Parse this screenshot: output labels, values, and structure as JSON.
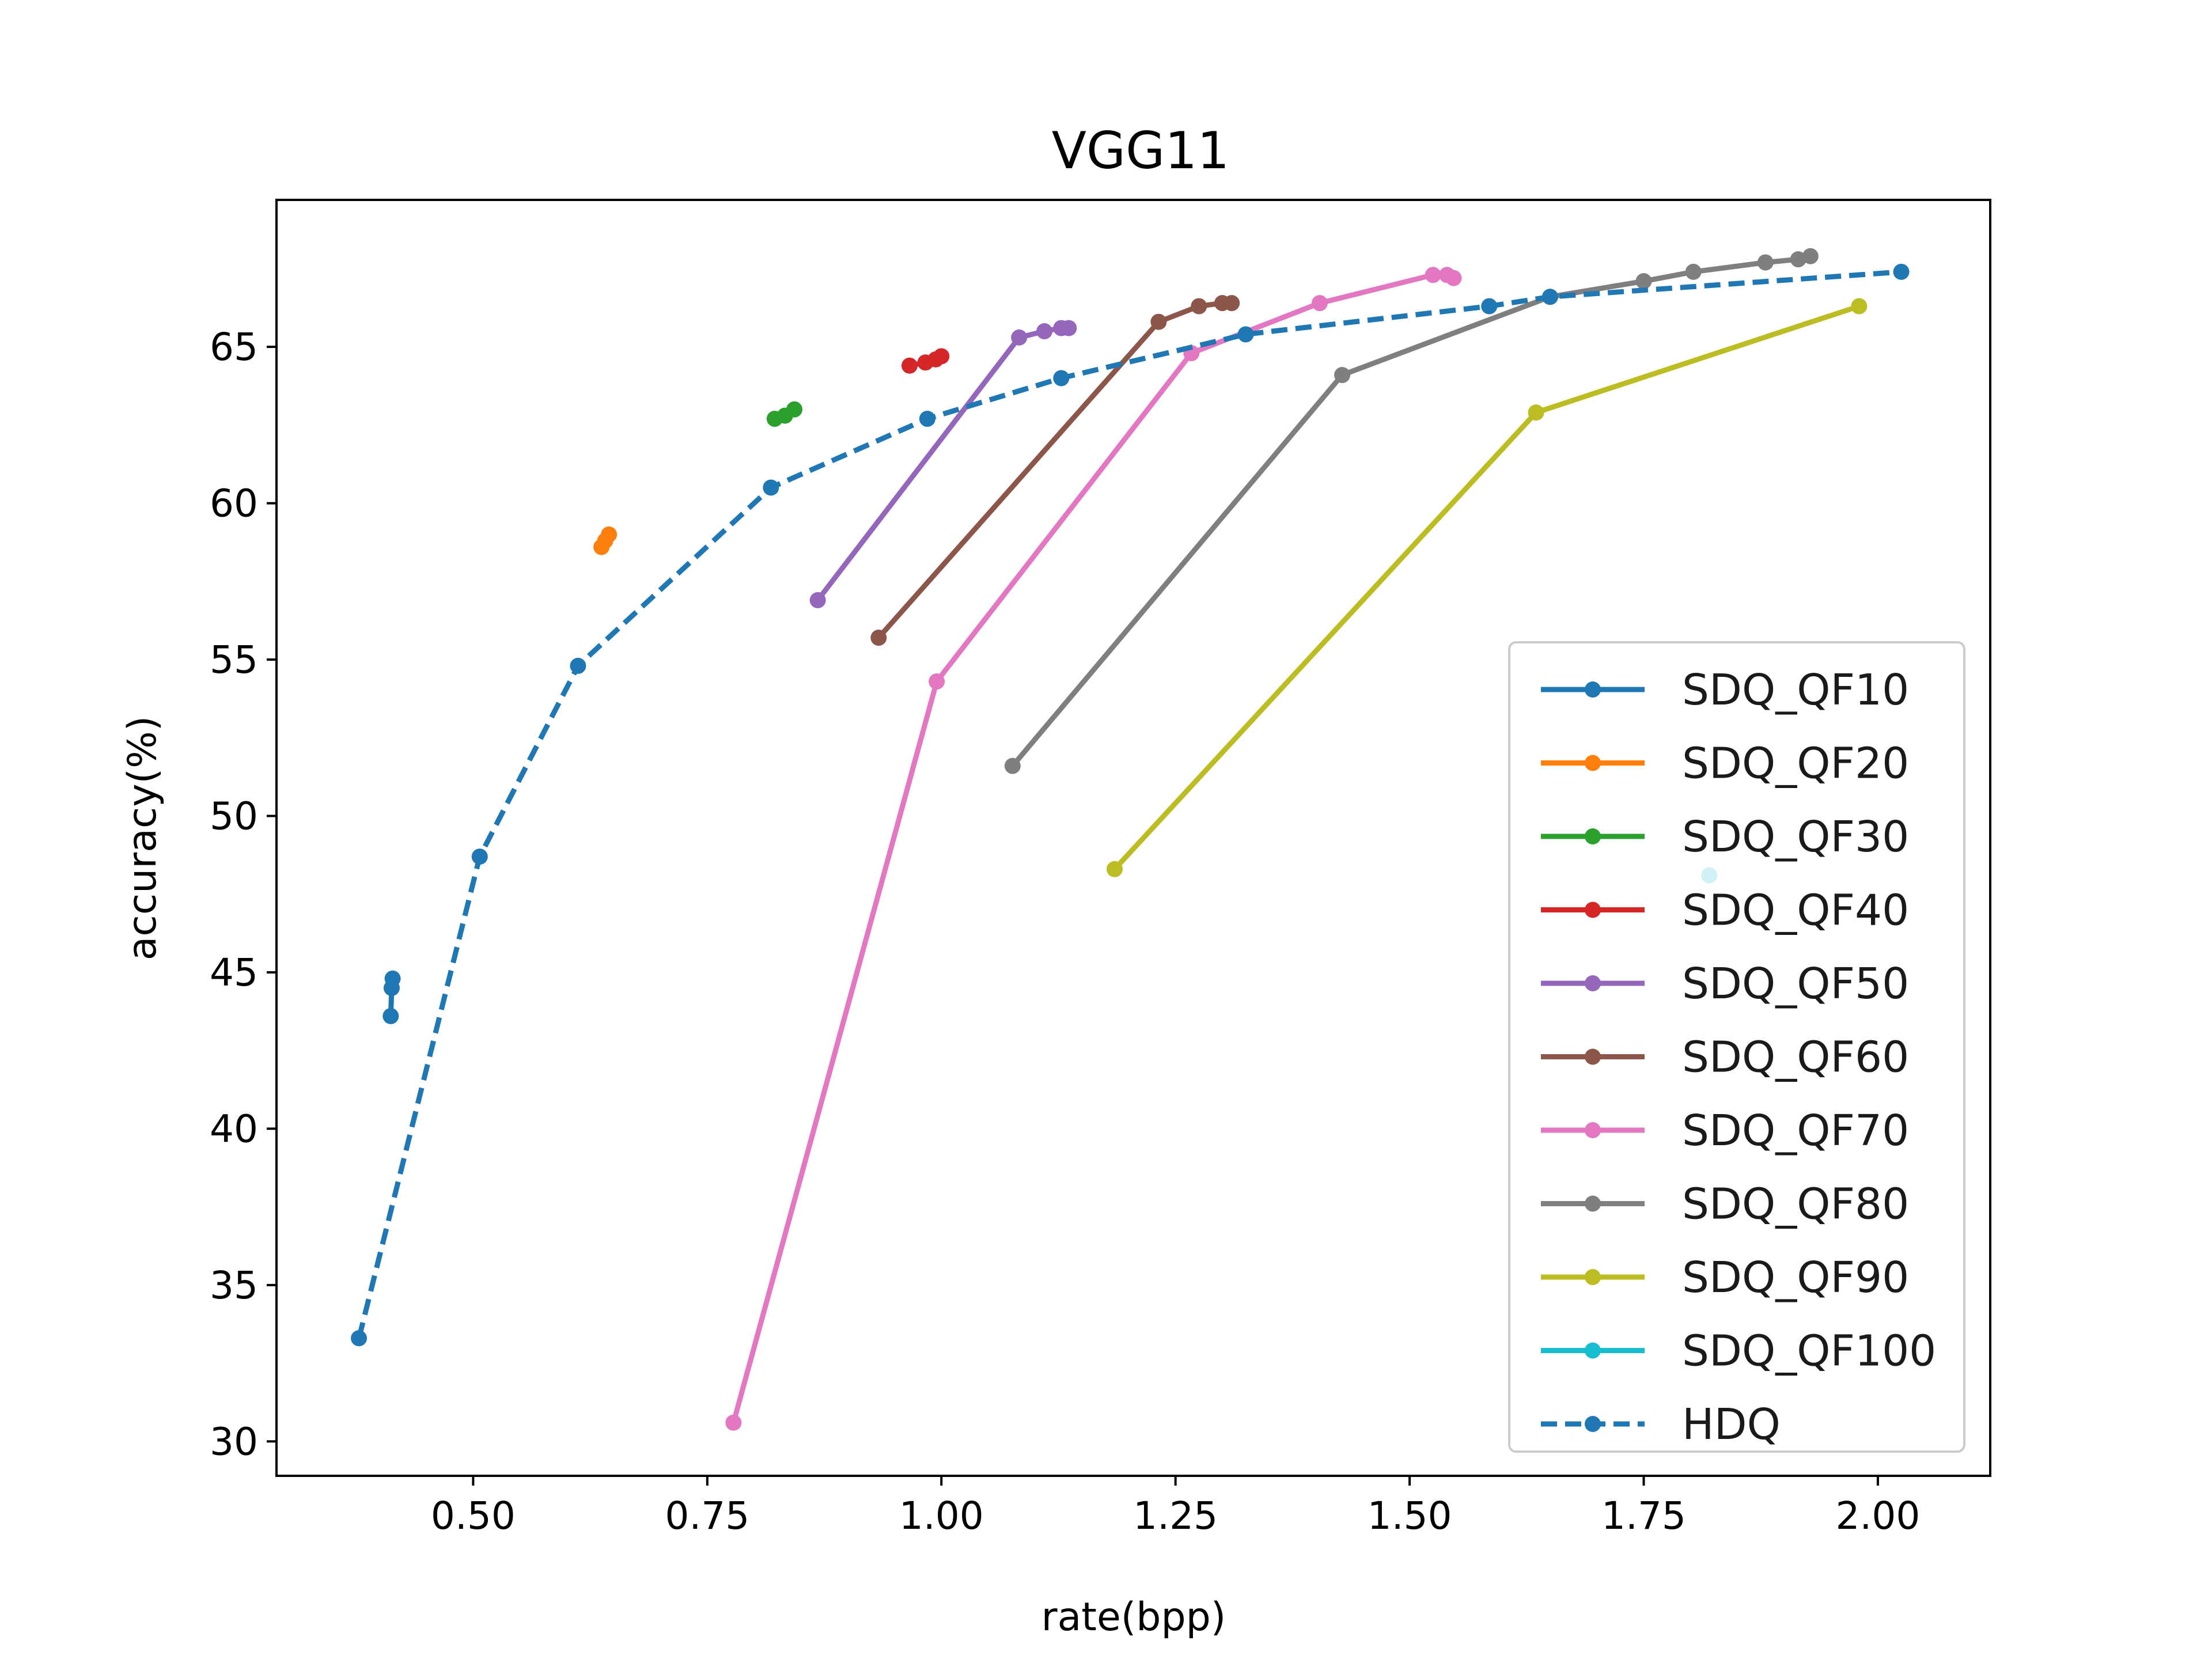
{
  "chart_data": {
    "type": "line",
    "title": "VGG11",
    "xlabel": "rate(bpp)",
    "ylabel": "accuracy(%)",
    "xlim": [
      0.29,
      2.12
    ],
    "ylim": [
      28.9,
      69.7
    ],
    "xticks": [
      0.5,
      0.75,
      1.0,
      1.25,
      1.5,
      1.75,
      2.0
    ],
    "xtick_labels": [
      "0.50",
      "0.75",
      "1.00",
      "1.25",
      "1.50",
      "1.75",
      "2.00"
    ],
    "yticks": [
      30,
      35,
      40,
      45,
      50,
      55,
      60,
      65
    ],
    "ytick_labels": [
      "30",
      "35",
      "40",
      "45",
      "50",
      "55",
      "60",
      "65"
    ],
    "grid": false,
    "legend_position": "lower-right",
    "series": [
      {
        "name": "SDQ_QF10",
        "color": "#1f77b4",
        "style": "solid",
        "points": [
          [
            0.414,
            44.8
          ],
          [
            0.413,
            44.5
          ],
          [
            0.412,
            43.6
          ]
        ]
      },
      {
        "name": "SDQ_QF20",
        "color": "#ff7f0e",
        "style": "solid",
        "points": [
          [
            0.637,
            58.6
          ],
          [
            0.641,
            58.8
          ],
          [
            0.645,
            59.0
          ]
        ]
      },
      {
        "name": "SDQ_QF30",
        "color": "#2ca02c",
        "style": "solid",
        "points": [
          [
            0.822,
            62.7
          ],
          [
            0.833,
            62.8
          ],
          [
            0.843,
            63.0
          ]
        ]
      },
      {
        "name": "SDQ_QF40",
        "color": "#d62728",
        "style": "solid",
        "points": [
          [
            0.966,
            64.4
          ],
          [
            0.983,
            64.5
          ],
          [
            0.994,
            64.6
          ],
          [
            1.0,
            64.7
          ]
        ]
      },
      {
        "name": "SDQ_QF50",
        "color": "#9467bd",
        "style": "solid",
        "points": [
          [
            0.868,
            56.9
          ],
          [
            1.083,
            65.3
          ],
          [
            1.11,
            65.5
          ],
          [
            1.128,
            65.6
          ],
          [
            1.136,
            65.6
          ]
        ]
      },
      {
        "name": "SDQ_QF60",
        "color": "#8c564b",
        "style": "solid",
        "points": [
          [
            0.933,
            55.7
          ],
          [
            1.232,
            65.8
          ],
          [
            1.275,
            66.3
          ],
          [
            1.3,
            66.4
          ],
          [
            1.31,
            66.4
          ]
        ]
      },
      {
        "name": "SDQ_QF70",
        "color": "#e377c2",
        "style": "solid",
        "points": [
          [
            0.778,
            30.6
          ],
          [
            0.995,
            54.3
          ],
          [
            1.267,
            64.8
          ],
          [
            1.404,
            66.4
          ],
          [
            1.525,
            67.3
          ],
          [
            1.54,
            67.3
          ],
          [
            1.547,
            67.2
          ]
        ]
      },
      {
        "name": "SDQ_QF80",
        "color": "#7f7f7f",
        "style": "solid",
        "points": [
          [
            1.076,
            51.6
          ],
          [
            1.428,
            64.1
          ],
          [
            1.65,
            66.6
          ],
          [
            1.75,
            67.1
          ],
          [
            1.803,
            67.4
          ],
          [
            1.88,
            67.7
          ],
          [
            1.915,
            67.8
          ],
          [
            1.928,
            67.9
          ]
        ]
      },
      {
        "name": "SDQ_QF90",
        "color": "#bcbd22",
        "style": "solid",
        "points": [
          [
            1.185,
            48.3
          ],
          [
            1.635,
            62.9
          ],
          [
            1.98,
            66.3
          ]
        ]
      },
      {
        "name": "SDQ_QF100",
        "color": "#17becf",
        "style": "solid",
        "points": [
          [
            1.82,
            48.1
          ]
        ]
      },
      {
        "name": "HDQ",
        "color": "#1f77b4",
        "style": "dashed",
        "points": [
          [
            0.378,
            33.3
          ],
          [
            0.507,
            48.7
          ],
          [
            0.612,
            54.8
          ],
          [
            0.818,
            60.5
          ],
          [
            0.985,
            62.7
          ],
          [
            1.128,
            64.0
          ],
          [
            1.325,
            65.4
          ],
          [
            1.585,
            66.3
          ],
          [
            1.65,
            66.6
          ],
          [
            2.025,
            67.4
          ]
        ]
      }
    ]
  }
}
